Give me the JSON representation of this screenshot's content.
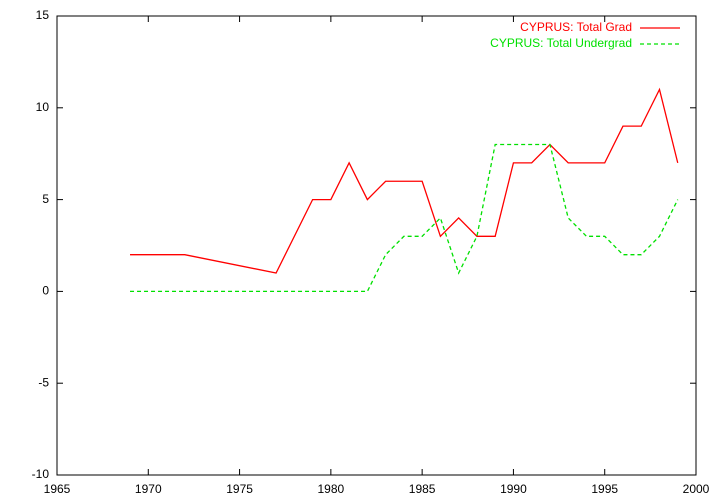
{
  "chart_data": {
    "type": "line",
    "series": [
      {
        "name": "CYPRUS: Total Grad",
        "color": "#ff0000",
        "dash": false,
        "x": [
          1969,
          1970,
          1971,
          1972,
          1977,
          1979,
          1980,
          1981,
          1982,
          1983,
          1984,
          1985,
          1986,
          1987,
          1988,
          1989,
          1990,
          1991,
          1992,
          1993,
          1994,
          1995,
          1996,
          1997,
          1998,
          1999
        ],
        "values": [
          2,
          2,
          2,
          2,
          1,
          5,
          5,
          7,
          5,
          6,
          6,
          6,
          3,
          4,
          3,
          3,
          7,
          7,
          8,
          7,
          7,
          7,
          9,
          9,
          11,
          7
        ]
      },
      {
        "name": "CYPRUS: Total Undergrad",
        "color": "#00e000",
        "dash": true,
        "x": [
          1969,
          1970,
          1971,
          1972,
          1973,
          1974,
          1975,
          1976,
          1977,
          1978,
          1979,
          1980,
          1981,
          1982,
          1983,
          1984,
          1985,
          1986,
          1987,
          1988,
          1989,
          1990,
          1991,
          1992,
          1993,
          1994,
          1995,
          1996,
          1997,
          1998,
          1999
        ],
        "values": [
          0,
          0,
          0,
          0,
          0,
          0,
          0,
          0,
          0,
          0,
          0,
          0,
          0,
          0,
          2,
          3,
          3,
          4,
          1,
          3,
          8,
          8,
          8,
          8,
          4,
          3,
          3,
          2,
          2,
          3,
          5
        ]
      }
    ],
    "xlim": [
      1965,
      2000
    ],
    "xticks": [
      1965,
      1970,
      1975,
      1980,
      1985,
      1990,
      1995,
      2000
    ],
    "ylim": [
      -10,
      15
    ],
    "yticks": [
      -10,
      -5,
      0,
      5,
      10,
      15
    ],
    "legend": "upper right",
    "grid": false
  }
}
